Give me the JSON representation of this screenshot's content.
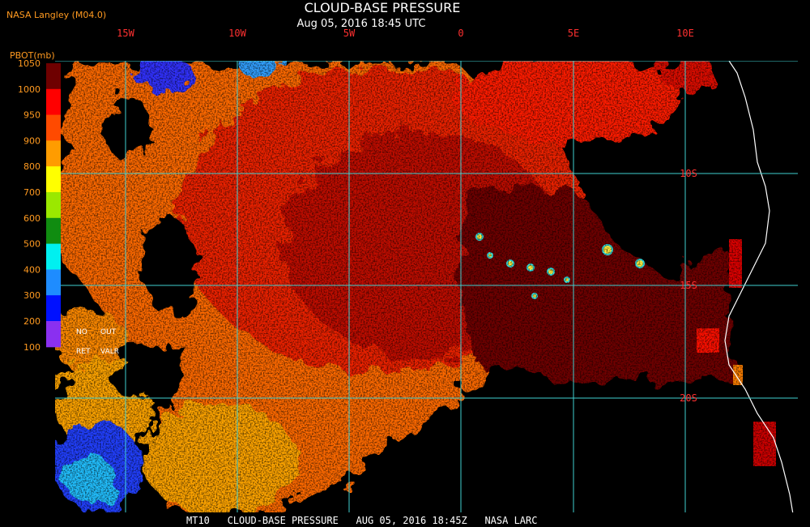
{
  "header": {
    "source": "NASA Langley (M04.0)",
    "title": "CLOUD-BASE PRESSURE",
    "subtitle": "Aug 05, 2016 18:45 UTC"
  },
  "legend": {
    "title": "PBOT(mb)",
    "ticks": [
      1050,
      1000,
      950,
      900,
      800,
      700,
      600,
      500,
      400,
      300,
      200,
      100
    ],
    "colors": [
      "#6e0000",
      "#ff0000",
      "#ff4a00",
      "#ff9c00",
      "#ffff00",
      "#9be800",
      "#108c10",
      "#00f0f0",
      "#1e8cff",
      "#0010ff",
      "#8a30f0"
    ],
    "notes": [
      "NO",
      "OUT",
      "RET",
      "VALR"
    ]
  },
  "grid": {
    "longitudes": [
      "15W",
      "10W",
      "5W",
      "0",
      "5E",
      "10E"
    ],
    "latitudes": [
      "10S",
      "15S",
      "20S"
    ]
  },
  "footer": "MT10   CLOUD-BASE PRESSURE   AUG 05, 2016 18:45Z   NASA LARC"
}
